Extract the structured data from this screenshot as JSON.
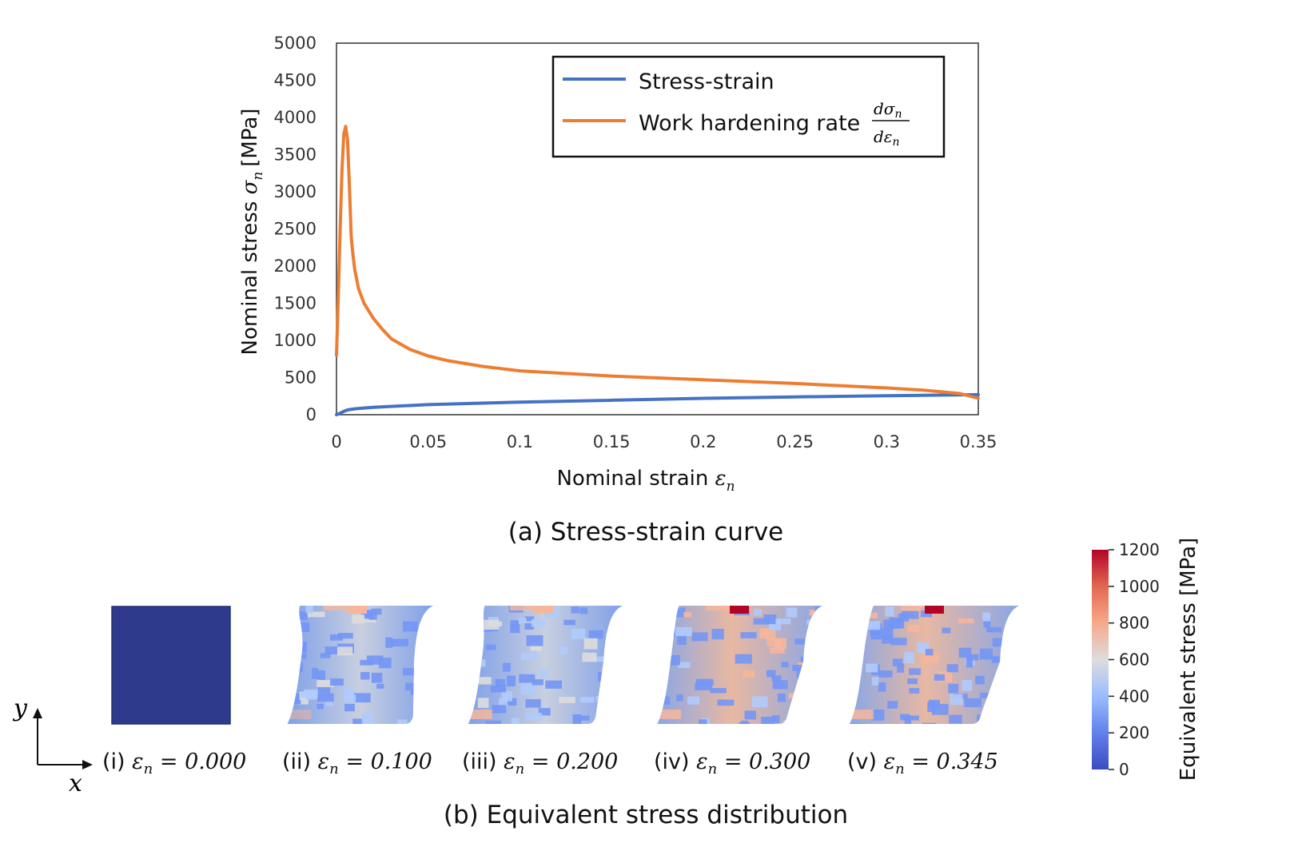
{
  "chart_data": {
    "type": "line",
    "title": "(a) Stress-strain curve",
    "xlabel": "Nominal strain",
    "xlabel_symbol": "ε",
    "xlabel_sub": "n",
    "ylabel": "Nominal stress",
    "ylabel_symbol": "σ",
    "ylabel_sub": "n",
    "ylabel_unit": "[MPa]",
    "xlim": [
      0,
      0.35
    ],
    "ylim": [
      0,
      5000
    ],
    "xticks": [
      "0",
      "0.05",
      "0.1",
      "0.15",
      "0.2",
      "0.25",
      "0.3",
      "0.35"
    ],
    "yticks": [
      "0",
      "500",
      "1000",
      "1500",
      "2000",
      "2500",
      "3000",
      "3500",
      "4000",
      "4500",
      "5000"
    ],
    "legend_position": "top-right",
    "series": [
      {
        "name": "Stress-strain",
        "color": "#4472C4",
        "x": [
          0,
          0.002,
          0.004,
          0.006,
          0.01,
          0.02,
          0.05,
          0.1,
          0.15,
          0.2,
          0.25,
          0.3,
          0.35
        ],
        "y": [
          0,
          20,
          45,
          65,
          80,
          100,
          135,
          170,
          195,
          220,
          240,
          255,
          270
        ]
      },
      {
        "name": "Work hardening rate",
        "name_math": "dσn/dεn",
        "color": "#ED7D31",
        "x": [
          0,
          0.001,
          0.002,
          0.003,
          0.004,
          0.005,
          0.006,
          0.007,
          0.008,
          0.009,
          0.01,
          0.012,
          0.015,
          0.02,
          0.025,
          0.03,
          0.04,
          0.05,
          0.06,
          0.08,
          0.1,
          0.15,
          0.2,
          0.25,
          0.3,
          0.32,
          0.34,
          0.35
        ],
        "y": [
          800,
          1600,
          2500,
          3300,
          3780,
          3880,
          3700,
          3100,
          2400,
          2150,
          1950,
          1700,
          1500,
          1300,
          1150,
          1020,
          880,
          790,
          730,
          650,
          590,
          520,
          470,
          420,
          360,
          330,
          285,
          220
        ]
      }
    ]
  },
  "panel_b": {
    "caption": "(b) Equivalent stress distribution",
    "axes": {
      "x": "x",
      "y": "y"
    },
    "panels": [
      {
        "roman": "(i)",
        "value": "0.000",
        "skew": 0
      },
      {
        "roman": "(ii)",
        "value": "0.100",
        "skew": 0.35
      },
      {
        "roman": "(iii)",
        "value": "0.200",
        "skew": 0.55
      },
      {
        "roman": "(iv)",
        "value": "0.300",
        "skew": 0.8
      },
      {
        "roman": "(v)",
        "value": "0.345",
        "skew": 0.9
      }
    ],
    "colorbar": {
      "label": "Equivalent stress [MPa]",
      "ticks": [
        "0",
        "200",
        "400",
        "600",
        "800",
        "1000",
        "1200"
      ],
      "colors": [
        "#3B4CC0",
        "#7396F5",
        "#B0CBFC",
        "#DDDDDD",
        "#F6B69B",
        "#E1694E",
        "#B40426"
      ]
    }
  }
}
